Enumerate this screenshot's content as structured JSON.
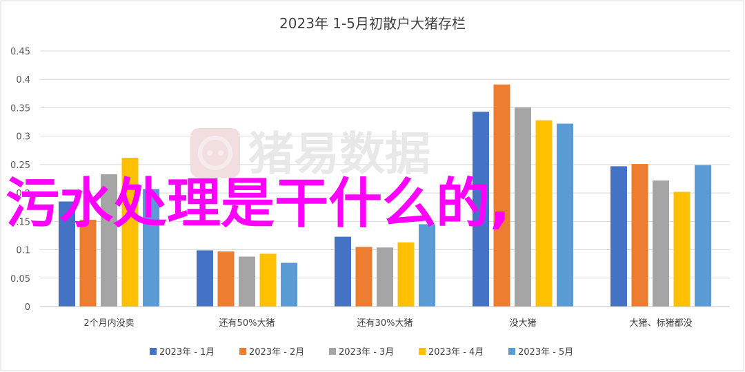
{
  "colors": {
    "series": [
      "#4472c4",
      "#ed7d31",
      "#a5a5a5",
      "#ffc000",
      "#5b9bd5"
    ],
    "overlay": "#ff00ff",
    "watermark": "#e8e8e8",
    "grid": "#d9d9d9"
  },
  "watermark": {
    "icon": "pig-logo-icon",
    "text": "猪易数据"
  },
  "overlay_text": "污水处理是干什么的,",
  "chart_data": {
    "type": "bar",
    "title": "2023年 1-5月初散户大猪存栏",
    "xlabel": "",
    "ylabel": "",
    "ylim": [
      0,
      0.45
    ],
    "yticks": [
      "0",
      "0.05",
      "0.1",
      "0.15",
      "0.2",
      "0.25",
      "0.3",
      "0.35",
      "0.4",
      "0.45"
    ],
    "grid": true,
    "legend_position": "bottom",
    "categories": [
      "2个月内没卖",
      "还有50%大猪",
      "还有30%大猪",
      "没大猪",
      "大猪、标猪都没"
    ],
    "series": [
      {
        "name": "2023年 - 1月",
        "values": [
          0.185,
          0.099,
          0.123,
          0.343,
          0.247
        ]
      },
      {
        "name": "2023年 - 2月",
        "values": [
          0.153,
          0.097,
          0.105,
          0.391,
          0.251
        ]
      },
      {
        "name": "2023年 - 3月",
        "values": [
          0.233,
          0.088,
          0.104,
          0.351,
          0.222
        ]
      },
      {
        "name": "2023年 - 4月",
        "values": [
          0.262,
          0.093,
          0.113,
          0.328,
          0.202
        ]
      },
      {
        "name": "2023年 - 5月",
        "values": [
          0.207,
          0.077,
          0.145,
          0.322,
          0.249
        ]
      }
    ]
  }
}
